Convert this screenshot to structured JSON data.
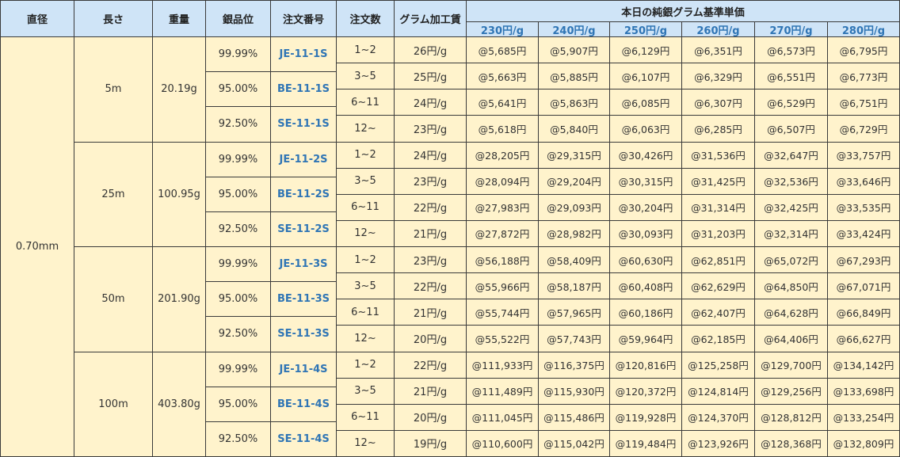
{
  "header": {
    "columns": [
      "直径",
      "長さ",
      "重量",
      "銀品位",
      "注文番号",
      "注文数",
      "グラム加工賃"
    ],
    "price_header": "本日の純銀グラム基準単価",
    "price_columns": [
      "230円/g",
      "240円/g",
      "250円/g",
      "260円/g",
      "270円/g",
      "280円/g"
    ]
  },
  "table": {
    "diameter": "0.70mm",
    "groups": [
      {
        "length": "5m",
        "weight": "20.19g",
        "grades": [
          {
            "purity": "99.99%",
            "code": "JE-11-1S"
          },
          {
            "purity": "95.00%",
            "code": "BE-11-1S"
          },
          {
            "purity": "92.50%",
            "code": "SE-11-1S"
          }
        ],
        "rows": [
          {
            "qty": "1~2",
            "fee": "26円/g",
            "prices": [
              "@5,685円",
              "@5,907円",
              "@6,129円",
              "@6,351円",
              "@6,573円",
              "@6,795円"
            ]
          },
          {
            "qty": "3~5",
            "fee": "25円/g",
            "prices": [
              "@5,663円",
              "@5,885円",
              "@6,107円",
              "@6,329円",
              "@6,551円",
              "@6,773円"
            ]
          },
          {
            "qty": "6~11",
            "fee": "24円/g",
            "prices": [
              "@5,641円",
              "@5,863円",
              "@6,085円",
              "@6,307円",
              "@6,529円",
              "@6,751円"
            ]
          },
          {
            "qty": "12~",
            "fee": "23円/g",
            "prices": [
              "@5,618円",
              "@5,840円",
              "@6,063円",
              "@6,285円",
              "@6,507円",
              "@6,729円"
            ]
          }
        ]
      },
      {
        "length": "25m",
        "weight": "100.95g",
        "grades": [
          {
            "purity": "99.99%",
            "code": "JE-11-2S"
          },
          {
            "purity": "95.00%",
            "code": "BE-11-2S"
          },
          {
            "purity": "92.50%",
            "code": "SE-11-2S"
          }
        ],
        "rows": [
          {
            "qty": "1~2",
            "fee": "24円/g",
            "prices": [
              "@28,205円",
              "@29,315円",
              "@30,426円",
              "@31,536円",
              "@32,647円",
              "@33,757円"
            ]
          },
          {
            "qty": "3~5",
            "fee": "23円/g",
            "prices": [
              "@28,094円",
              "@29,204円",
              "@30,315円",
              "@31,425円",
              "@32,536円",
              "@33,646円"
            ]
          },
          {
            "qty": "6~11",
            "fee": "22円/g",
            "prices": [
              "@27,983円",
              "@29,093円",
              "@30,204円",
              "@31,314円",
              "@32,425円",
              "@33,535円"
            ]
          },
          {
            "qty": "12~",
            "fee": "21円/g",
            "prices": [
              "@27,872円",
              "@28,982円",
              "@30,093円",
              "@31,203円",
              "@32,314円",
              "@33,424円"
            ]
          }
        ]
      },
      {
        "length": "50m",
        "weight": "201.90g",
        "grades": [
          {
            "purity": "99.99%",
            "code": "JE-11-3S"
          },
          {
            "purity": "95.00%",
            "code": "BE-11-3S"
          },
          {
            "purity": "92.50%",
            "code": "SE-11-3S"
          }
        ],
        "rows": [
          {
            "qty": "1~2",
            "fee": "23円/g",
            "prices": [
              "@56,188円",
              "@58,409円",
              "@60,630円",
              "@62,851円",
              "@65,072円",
              "@67,293円"
            ]
          },
          {
            "qty": "3~5",
            "fee": "22円/g",
            "prices": [
              "@55,966円",
              "@58,187円",
              "@60,408円",
              "@62,629円",
              "@64,850円",
              "@67,071円"
            ]
          },
          {
            "qty": "6~11",
            "fee": "21円/g",
            "prices": [
              "@55,744円",
              "@57,965円",
              "@60,186円",
              "@62,407円",
              "@64,628円",
              "@66,849円"
            ]
          },
          {
            "qty": "12~",
            "fee": "20円/g",
            "prices": [
              "@55,522円",
              "@57,743円",
              "@59,964円",
              "@62,185円",
              "@64,406円",
              "@66,627円"
            ]
          }
        ]
      },
      {
        "length": "100m",
        "weight": "403.80g",
        "grades": [
          {
            "purity": "99.99%",
            "code": "JE-11-4S"
          },
          {
            "purity": "95.00%",
            "code": "BE-11-4S"
          },
          {
            "purity": "92.50%",
            "code": "SE-11-4S"
          }
        ],
        "rows": [
          {
            "qty": "1~2",
            "fee": "22円/g",
            "prices": [
              "@111,933円",
              "@116,375円",
              "@120,816円",
              "@125,258円",
              "@129,700円",
              "@134,142円"
            ]
          },
          {
            "qty": "3~5",
            "fee": "21円/g",
            "prices": [
              "@111,489円",
              "@115,930円",
              "@120,372円",
              "@124,814円",
              "@129,256円",
              "@133,698円"
            ]
          },
          {
            "qty": "6~11",
            "fee": "20円/g",
            "prices": [
              "@111,045円",
              "@115,486円",
              "@119,928円",
              "@124,370円",
              "@128,812円",
              "@133,254円"
            ]
          },
          {
            "qty": "12~",
            "fee": "19円/g",
            "prices": [
              "@110,600円",
              "@115,042円",
              "@119,484円",
              "@123,926円",
              "@128,368円",
              "@132,809円"
            ]
          }
        ]
      }
    ]
  }
}
